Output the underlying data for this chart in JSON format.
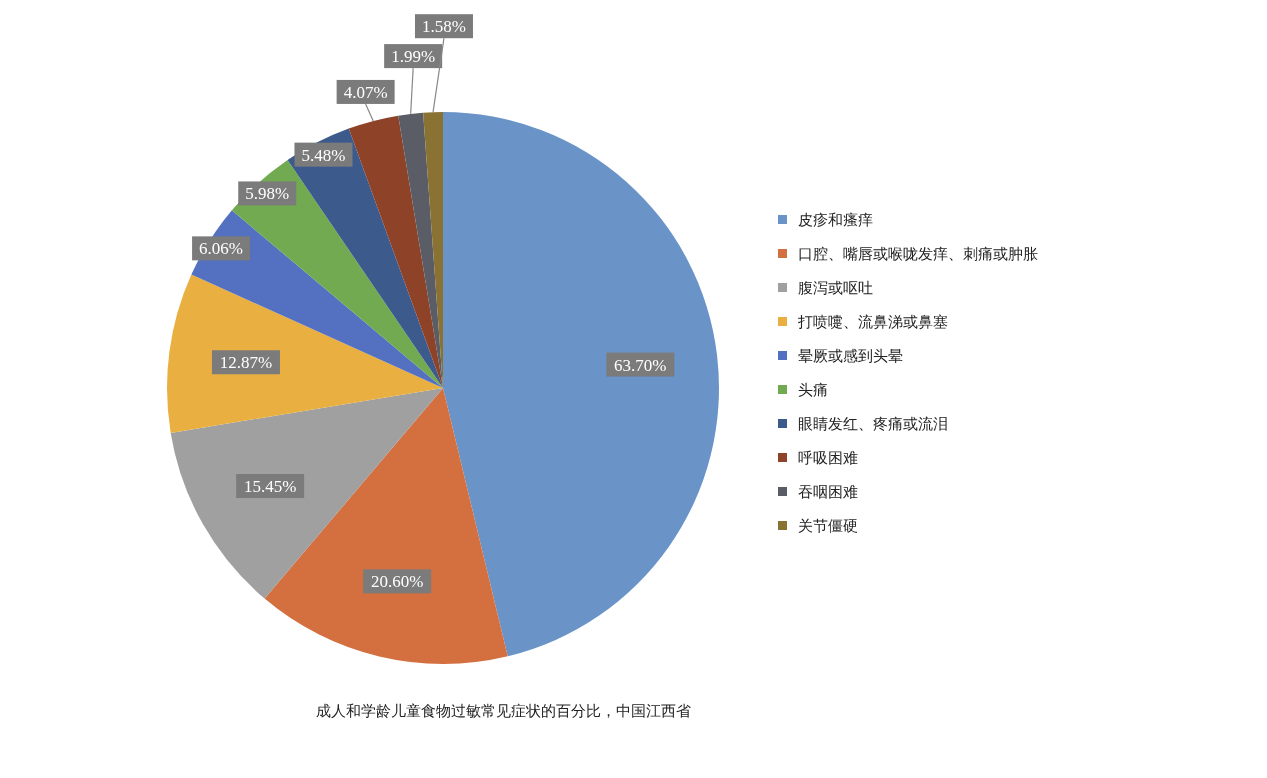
{
  "chart_data": {
    "type": "pie",
    "categories": [
      "皮疹和瘙痒",
      "口腔、嘴唇或喉咙发痒、刺痛或肿胀",
      "腹泻或呕吐",
      "打喷嚏、流鼻涕或鼻塞",
      "晕厥或感到头晕",
      "头痛",
      "眼睛发红、疼痛或流泪",
      "呼吸困难",
      "吞咽困难",
      "关节僵硬"
    ],
    "values": [
      63.7,
      20.6,
      15.45,
      12.87,
      6.06,
      5.98,
      5.48,
      4.07,
      1.99,
      1.58
    ],
    "value_labels": [
      "63.70%",
      "20.60%",
      "15.45%",
      "12.87%",
      "6.06%",
      "5.98%",
      "5.48%",
      "4.07%",
      "1.99%",
      "1.58%"
    ],
    "colors": [
      "#6a93c8",
      "#d46f3f",
      "#a0a0a0",
      "#e9b041",
      "#5470c0",
      "#72aa52",
      "#3d5a8c",
      "#8e4227",
      "#5a5d66",
      "#8a7233"
    ],
    "legend": "right",
    "annotations": [
      "成人和学龄儿童食物过敏常见症状的百分比，中国江西省"
    ]
  }
}
